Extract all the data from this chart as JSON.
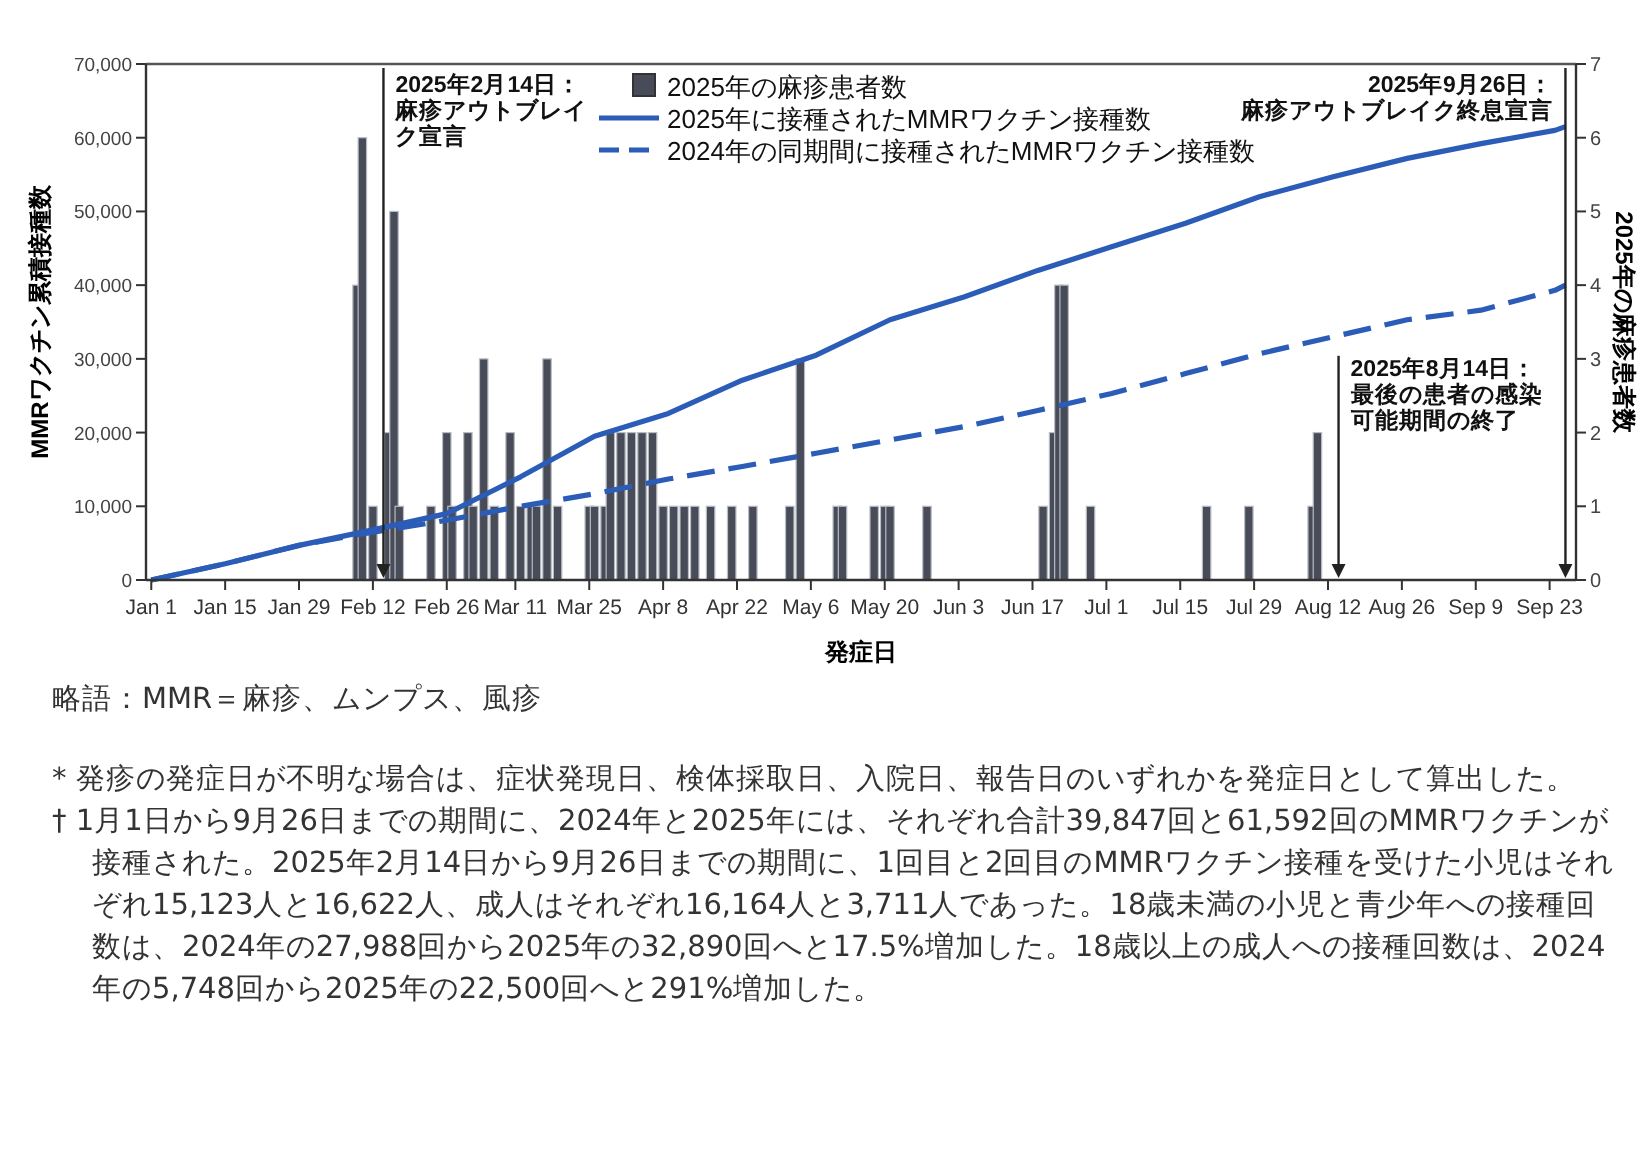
{
  "chart_data": {
    "type": "bar",
    "xlabel": "発症日",
    "ylabel": "MMRワクチン累積接種数",
    "y2label": "2025年の麻疹患者数",
    "xlim": [
      "2024-12-31",
      "2025-09-28"
    ],
    "xticks": [
      {
        "value": "2025-01-01",
        "label": "Jan 1"
      },
      {
        "value": "2025-01-15",
        "label": "Jan 15"
      },
      {
        "value": "2025-01-29",
        "label": "Jan 29"
      },
      {
        "value": "2025-02-12",
        "label": "Feb 12"
      },
      {
        "value": "2025-02-26",
        "label": "Feb 26"
      },
      {
        "value": "2025-03-11",
        "label": "Mar 11"
      },
      {
        "value": "2025-03-25",
        "label": "Mar 25"
      },
      {
        "value": "2025-04-08",
        "label": "Apr 8"
      },
      {
        "value": "2025-04-22",
        "label": "Apr 22"
      },
      {
        "value": "2025-05-06",
        "label": "May 6"
      },
      {
        "value": "2025-05-20",
        "label": "May 20"
      },
      {
        "value": "2025-06-03",
        "label": "Jun 3"
      },
      {
        "value": "2025-06-17",
        "label": "Jun 17"
      },
      {
        "value": "2025-07-01",
        "label": "Jul 1"
      },
      {
        "value": "2025-07-15",
        "label": "Jul 15"
      },
      {
        "value": "2025-07-29",
        "label": "Jul 29"
      },
      {
        "value": "2025-08-12",
        "label": "Aug 12"
      },
      {
        "value": "2025-08-26",
        "label": "Aug 26"
      },
      {
        "value": "2025-09-09",
        "label": "Sep 9"
      },
      {
        "value": "2025-09-23",
        "label": "Sep 23"
      }
    ],
    "ylim": [
      0,
      70000
    ],
    "yticks": [
      0,
      {
        "value": 10000,
        "label": "10,000"
      },
      {
        "value": 20000,
        "label": "20,000"
      },
      {
        "value": 30000,
        "label": "30,000"
      },
      {
        "value": 40000,
        "label": "40,000"
      },
      {
        "value": 50000,
        "label": "50,000"
      },
      {
        "value": 60000,
        "label": "60,000"
      },
      {
        "value": 70000,
        "label": "70,000"
      }
    ],
    "y2lim": [
      0,
      7
    ],
    "y2ticks": [
      0,
      1,
      2,
      3,
      4,
      5,
      6,
      7
    ],
    "legend": "top",
    "series": [
      {
        "name": "2025年の麻疹患者数",
        "axis": "y2",
        "color": "#474c58",
        "x": [
          "2025-02-09",
          "2025-02-10",
          "2025-02-12",
          "2025-02-15",
          "2025-02-16",
          "2025-02-17",
          "2025-02-23",
          "2025-02-26",
          "2025-02-27",
          "2025-03-02",
          "2025-03-03",
          "2025-03-05",
          "2025-03-07",
          "2025-03-10",
          "2025-03-12",
          "2025-03-14",
          "2025-03-15",
          "2025-03-17",
          "2025-03-19",
          "2025-03-25",
          "2025-03-26",
          "2025-03-28",
          "2025-03-29",
          "2025-03-31",
          "2025-04-02",
          "2025-04-04",
          "2025-04-06",
          "2025-04-08",
          "2025-04-10",
          "2025-04-12",
          "2025-04-14",
          "2025-04-17",
          "2025-04-21",
          "2025-04-25",
          "2025-05-02",
          "2025-05-04",
          "2025-05-11",
          "2025-05-12",
          "2025-05-18",
          "2025-05-20",
          "2025-05-21",
          "2025-05-28",
          "2025-06-19",
          "2025-06-21",
          "2025-06-22",
          "2025-06-23",
          "2025-06-28",
          "2025-07-20",
          "2025-07-28",
          "2025-08-09",
          "2025-08-10"
        ],
        "values": [
          4,
          6,
          1,
          2,
          5,
          1,
          1,
          2,
          1,
          2,
          1,
          3,
          1,
          2,
          1,
          1,
          1,
          3,
          1,
          1,
          1,
          1,
          2,
          2,
          2,
          2,
          2,
          1,
          1,
          1,
          1,
          1,
          1,
          1,
          1,
          3,
          1,
          1,
          1,
          1,
          1,
          1,
          1,
          2,
          4,
          4,
          1,
          1,
          1,
          1,
          2
        ]
      },
      {
        "name": "2025年に接種されたMMRワクチン接種数",
        "type": "line",
        "line_style": "solid",
        "color": "#2a5cb8",
        "x": [
          "2025-01-01",
          "2025-01-15",
          "2025-01-29",
          "2025-02-12",
          "2025-02-26",
          "2025-03-12",
          "2025-03-26",
          "2025-04-09",
          "2025-04-23",
          "2025-05-07",
          "2025-05-21",
          "2025-06-04",
          "2025-06-18",
          "2025-07-02",
          "2025-07-16",
          "2025-07-30",
          "2025-08-13",
          "2025-08-27",
          "2025-09-10",
          "2025-09-24",
          "2025-09-26"
        ],
        "values": [
          0,
          2200,
          4700,
          6800,
          9000,
          14000,
          19500,
          22600,
          27100,
          30500,
          35300,
          38400,
          42000,
          45200,
          48400,
          52000,
          54700,
          57200,
          59200,
          61000,
          61500
        ]
      },
      {
        "name": "2024年の同期間に接種されたMMRワクチン接種数",
        "type": "line",
        "line_style": "dashed",
        "color": "#2a5cb8",
        "x": [
          "2025-01-01",
          "2025-01-15",
          "2025-01-29",
          "2025-02-12",
          "2025-02-26",
          "2025-03-12",
          "2025-03-26",
          "2025-04-09",
          "2025-04-23",
          "2025-05-07",
          "2025-05-21",
          "2025-06-04",
          "2025-06-18",
          "2025-07-02",
          "2025-07-16",
          "2025-07-30",
          "2025-08-13",
          "2025-08-27",
          "2025-09-10",
          "2025-09-24",
          "2025-09-26"
        ],
        "values": [
          0,
          2200,
          4700,
          6500,
          8100,
          10000,
          11700,
          13700,
          15400,
          17200,
          19000,
          20800,
          23000,
          25300,
          28000,
          30700,
          33000,
          35300,
          36600,
          39300,
          40000
        ]
      }
    ],
    "ref_lines": [
      {
        "axis": "x",
        "value": "2025-02-14",
        "label": "2025年2月14日：麻疹アウトブレイク宣言",
        "color": "#222222"
      },
      {
        "axis": "x",
        "value": "2025-09-26",
        "label": "2025年9月26日：麻疹アウトブレイク終息宣言",
        "color": "#222222"
      },
      {
        "axis": "x",
        "value": "2025-08-14",
        "label": "2025年8月14日：最後の患者の感染可能期間の終了",
        "color": "#222222"
      }
    ],
    "annotations": [
      "略語：MMR＝麻疹、ムンプス、風疹",
      "* 発疹の発症日が不明な場合は、症状発現日、検体採取日、入院日、報告日のいずれかを発症日として算出した。",
      "† 1月1日から9月26日までの期間に、2024年と2025年には、それぞれ合計39,847回と61,592回のMMRワクチンが接種された。2025年2月14日から9月26日までの期間に、1回目と2回目のMMRワクチン接種を受けた小児はそれぞれ15,123人と16,622人、成人はそれぞれ16,164人と3,711人であった。18歳未満の小児と青少年への接種回数は、2024年の27,988回から2025年の32,890回へと17.5%増加した。18歳以上の成人への接種回数は、2024年の5,748回から2025年の22,500回へと291%増加した。"
    ]
  }
}
